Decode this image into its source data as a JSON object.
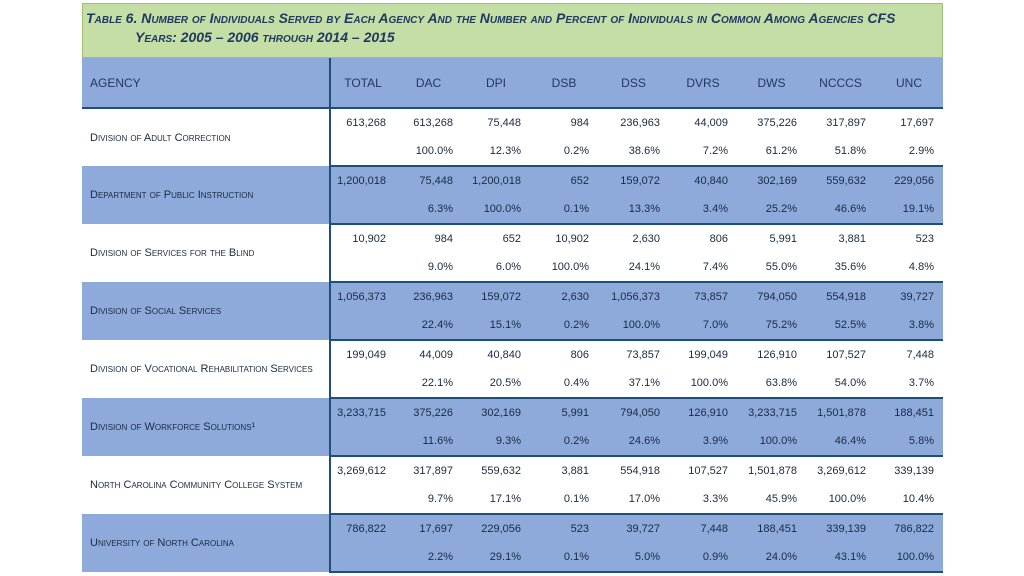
{
  "title": {
    "line1": "Table 6. Number of Individuals Served by Each Agency And the Number and Percent of Individuals in Common Among Agencies CFS",
    "line2": "Years: 2005 – 2006 through 2014 – 2015"
  },
  "columns": [
    "AGENCY",
    "TOTAL",
    "DAC",
    "DPI",
    "DSB",
    "DSS",
    "DVRS",
    "DWS",
    "NCCCS",
    "UNC"
  ],
  "rows": [
    {
      "agency": "Division of Adult Correction",
      "total": "613,268",
      "counts": [
        "613,268",
        "75,448",
        "984",
        "236,963",
        "44,009",
        "375,226",
        "317,897",
        "17,697"
      ],
      "percents": [
        "100.0%",
        "12.3%",
        "0.2%",
        "38.6%",
        "7.2%",
        "61.2%",
        "51.8%",
        "2.9%"
      ]
    },
    {
      "agency": "Department of Public Instruction",
      "total": "1,200,018",
      "counts": [
        "75,448",
        "1,200,018",
        "652",
        "159,072",
        "40,840",
        "302,169",
        "559,632",
        "229,056"
      ],
      "percents": [
        "6.3%",
        "100.0%",
        "0.1%",
        "13.3%",
        "3.4%",
        "25.2%",
        "46.6%",
        "19.1%"
      ]
    },
    {
      "agency": "Division of Services for the Blind",
      "total": "10,902",
      "counts": [
        "984",
        "652",
        "10,902",
        "2,630",
        "806",
        "5,991",
        "3,881",
        "523"
      ],
      "percents": [
        "9.0%",
        "6.0%",
        "100.0%",
        "24.1%",
        "7.4%",
        "55.0%",
        "35.6%",
        "4.8%"
      ]
    },
    {
      "agency": "Division of Social Services",
      "total": "1,056,373",
      "counts": [
        "236,963",
        "159,072",
        "2,630",
        "1,056,373",
        "73,857",
        "794,050",
        "554,918",
        "39,727"
      ],
      "percents": [
        "22.4%",
        "15.1%",
        "0.2%",
        "100.0%",
        "7.0%",
        "75.2%",
        "52.5%",
        "3.8%"
      ]
    },
    {
      "agency": "Division of Vocational Rehabilitation Services",
      "total": "199,049",
      "counts": [
        "44,009",
        "40,840",
        "806",
        "73,857",
        "199,049",
        "126,910",
        "107,527",
        "7,448"
      ],
      "percents": [
        "22.1%",
        "20.5%",
        "0.4%",
        "37.1%",
        "100.0%",
        "63.8%",
        "54.0%",
        "3.7%"
      ]
    },
    {
      "agency": "Division of Workforce Solutions¹",
      "total": "3,233,715",
      "counts": [
        "375,226",
        "302,169",
        "5,991",
        "794,050",
        "126,910",
        "3,233,715",
        "1,501,878",
        "188,451"
      ],
      "percents": [
        "11.6%",
        "9.3%",
        "0.2%",
        "24.6%",
        "3.9%",
        "100.0%",
        "46.4%",
        "5.8%"
      ]
    },
    {
      "agency": "North Carolina Community College System",
      "total": "3,269,612",
      "counts": [
        "317,897",
        "559,632",
        "3,881",
        "554,918",
        "107,527",
        "1,501,878",
        "3,269,612",
        "339,139"
      ],
      "percents": [
        "9.7%",
        "17.1%",
        "0.1%",
        "17.0%",
        "3.3%",
        "45.9%",
        "100.0%",
        "10.4%"
      ]
    },
    {
      "agency": "University of North Carolina",
      "total": "786,822",
      "counts": [
        "17,697",
        "229,056",
        "523",
        "39,727",
        "7,448",
        "188,451",
        "339,139",
        "786,822"
      ],
      "percents": [
        "2.2%",
        "29.1%",
        "0.1%",
        "5.0%",
        "0.9%",
        "24.0%",
        "43.1%",
        "100.0%"
      ]
    }
  ],
  "colors": {
    "title_bg": "#c5dea5",
    "header_bg": "#8eaadb",
    "row_alt_bg": "#8eaadb",
    "text": "#1f3864",
    "border": "#1f4e79"
  }
}
